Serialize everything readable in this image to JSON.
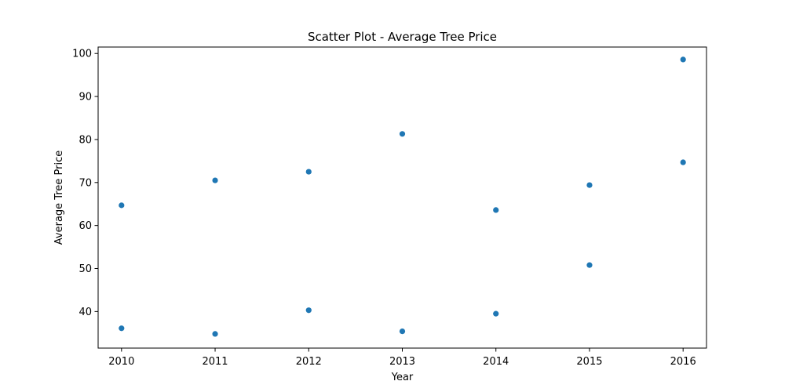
{
  "chart_data": {
    "type": "scatter",
    "title": "Scatter Plot - Average Tree Price",
    "xlabel": "Year",
    "ylabel": "Average Tree Price",
    "xlim": [
      2009.75,
      2016.25
    ],
    "ylim": [
      31.5,
      101.5
    ],
    "xticks": [
      2010,
      2011,
      2012,
      2013,
      2014,
      2015,
      2016
    ],
    "yticks": [
      40,
      50,
      60,
      70,
      80,
      90,
      100
    ],
    "grid": false,
    "series": [
      {
        "color": "#1f77b4",
        "points": [
          {
            "x": 2010,
            "y": 64.7
          },
          {
            "x": 2010,
            "y": 36.1
          },
          {
            "x": 2011,
            "y": 70.5
          },
          {
            "x": 2011,
            "y": 34.8
          },
          {
            "x": 2012,
            "y": 72.5
          },
          {
            "x": 2012,
            "y": 40.3
          },
          {
            "x": 2013,
            "y": 81.3
          },
          {
            "x": 2013,
            "y": 35.4
          },
          {
            "x": 2014,
            "y": 63.6
          },
          {
            "x": 2014,
            "y": 39.5
          },
          {
            "x": 2015,
            "y": 69.4
          },
          {
            "x": 2015,
            "y": 50.8
          },
          {
            "x": 2016,
            "y": 98.6
          },
          {
            "x": 2016,
            "y": 74.7
          }
        ]
      }
    ]
  }
}
